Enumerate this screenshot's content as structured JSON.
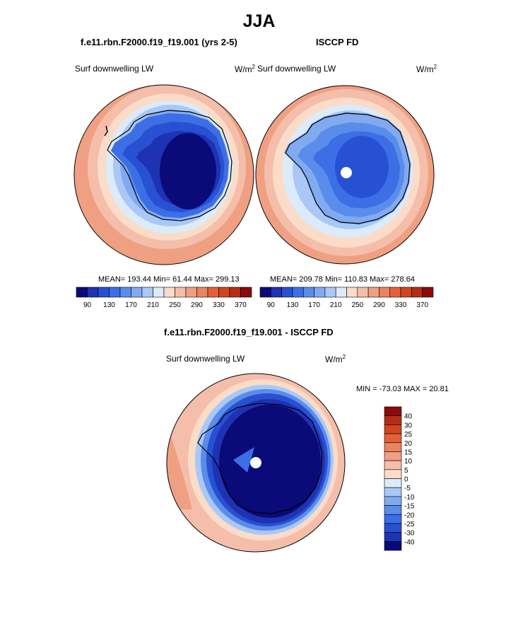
{
  "title": "JJA",
  "panels": {
    "model": {
      "title": "f.e11.rbn.F2000.f19_f19.001 (yrs 2-5)",
      "variable": "Surf downwelling LW",
      "units_base": "W/m",
      "units_exp": "2",
      "stats": "MEAN= 193.44  Min=  61.44  Max= 299.13"
    },
    "obs": {
      "title": "ISCCP FD",
      "variable": "Surf downwelling LW",
      "units_base": "W/m",
      "units_exp": "2",
      "stats": "MEAN= 209.78  Min= 110.83  Max= 278.64"
    },
    "diff": {
      "title": "f.e11.rbn.F2000.f19_f19.001 - ISCCP FD",
      "variable": "Surf downwelling LW",
      "units_base": "W/m",
      "units_exp": "2",
      "stats": "MIN = -73.03 MAX =  20.81"
    }
  },
  "colorbar_abs": {
    "tick_labels": [
      "90",
      "130",
      "170",
      "210",
      "250",
      "290",
      "330",
      "370"
    ],
    "colors": [
      "#0a0a78",
      "#1e32b4",
      "#2850d2",
      "#3c6ee6",
      "#5a8ceb",
      "#82aaf0",
      "#aac8f5",
      "#dcebfa",
      "#fadcc8",
      "#f5beaa",
      "#f0a082",
      "#eb8260",
      "#e65f3c",
      "#d2461e",
      "#b42d14",
      "#8c0a0a"
    ]
  },
  "colorbar_diff": {
    "tick_labels": [
      "40",
      "30",
      "25",
      "20",
      "15",
      "10",
      "5",
      "0",
      "-5",
      "-10",
      "-15",
      "-20",
      "-25",
      "-30",
      "-40"
    ],
    "colors": [
      "#8c0a0a",
      "#b42d14",
      "#d2461e",
      "#e65f3c",
      "#eb8260",
      "#f0a082",
      "#f5beaa",
      "#fadcc8",
      "#dcebfa",
      "#aac8f5",
      "#82aaf0",
      "#5a8ceb",
      "#3c6ee6",
      "#2850d2",
      "#1e32b4",
      "#0a0a78"
    ]
  },
  "palette": {
    "ocean_warm": "#f0a082",
    "ocean_mid": "#f5beaa",
    "ring_light": "#fadcc8",
    "ring_pale": "#dcebfa",
    "cold_1": "#aac8f5",
    "cold_2": "#82aaf0",
    "cold_3": "#5a8ceb",
    "cold_4": "#3c6ee6",
    "cold_5": "#2850d2",
    "cold_6": "#1e32b4",
    "cold_7": "#0a0a78",
    "coast": "#000000",
    "pole_mask": "#ffffff"
  }
}
